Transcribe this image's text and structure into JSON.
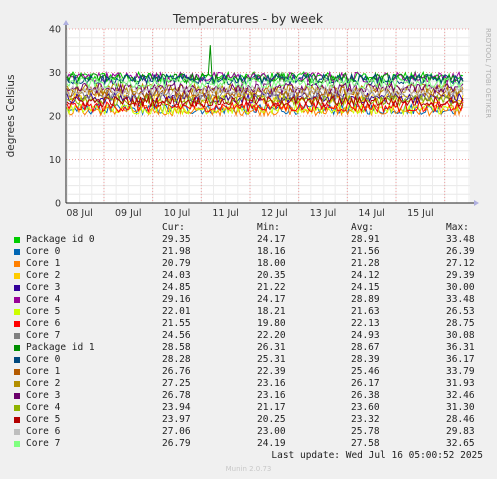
{
  "chart_data": {
    "type": "line",
    "title": "Temperatures - by week",
    "ylabel": "degrees Celsius",
    "side_label": "RRDTOOL / TOBI OETIKER",
    "ylim": [
      0,
      40
    ],
    "yticks": [
      0,
      10,
      20,
      30,
      40
    ],
    "xticks": [
      "08 Jul",
      "09 Jul",
      "10 Jul",
      "11 Jul",
      "12 Jul",
      "13 Jul",
      "14 Jul",
      "15 Jul"
    ],
    "grid": true,
    "legend_placement": "bottom",
    "columns": [
      "Cur:",
      "Min:",
      "Avg:",
      "Max:"
    ],
    "series": [
      {
        "name": "Package id 0",
        "color": "#00cc00",
        "cur": "29.35",
        "min": "24.17",
        "avg": "28.91",
        "max": "33.48"
      },
      {
        "name": "Core 0",
        "color": "#0066b3",
        "cur": "21.98",
        "min": "18.16",
        "avg": "21.56",
        "max": "26.39"
      },
      {
        "name": "Core 1",
        "color": "#ff8000",
        "cur": "20.79",
        "min": "18.00",
        "avg": "21.28",
        "max": "27.12"
      },
      {
        "name": "Core 2",
        "color": "#ffcc00",
        "cur": "24.03",
        "min": "20.35",
        "avg": "24.12",
        "max": "29.39"
      },
      {
        "name": "Core 3",
        "color": "#330099",
        "cur": "24.85",
        "min": "21.22",
        "avg": "24.15",
        "max": "30.00"
      },
      {
        "name": "Core 4",
        "color": "#990099",
        "cur": "29.16",
        "min": "24.17",
        "avg": "28.89",
        "max": "33.48"
      },
      {
        "name": "Core 5",
        "color": "#ccff00",
        "cur": "22.01",
        "min": "18.21",
        "avg": "21.63",
        "max": "26.53"
      },
      {
        "name": "Core 6",
        "color": "#ff0000",
        "cur": "21.55",
        "min": "19.80",
        "avg": "22.13",
        "max": "28.75"
      },
      {
        "name": "Core 7",
        "color": "#808080",
        "cur": "24.56",
        "min": "22.20",
        "avg": "24.93",
        "max": "30.08"
      },
      {
        "name": "Package id 1",
        "color": "#008f00",
        "cur": "28.58",
        "min": "26.31",
        "avg": "28.67",
        "max": "36.31"
      },
      {
        "name": "Core 0",
        "color": "#00487d",
        "cur": "28.28",
        "min": "25.31",
        "avg": "28.39",
        "max": "36.17"
      },
      {
        "name": "Core 1",
        "color": "#b35a00",
        "cur": "26.76",
        "min": "22.39",
        "avg": "25.46",
        "max": "33.79"
      },
      {
        "name": "Core 2",
        "color": "#b38f00",
        "cur": "27.25",
        "min": "23.16",
        "avg": "26.17",
        "max": "31.93"
      },
      {
        "name": "Core 3",
        "color": "#6b006b",
        "cur": "26.78",
        "min": "23.16",
        "avg": "26.38",
        "max": "32.46"
      },
      {
        "name": "Core 4",
        "color": "#8fb300",
        "cur": "23.94",
        "min": "21.17",
        "avg": "23.60",
        "max": "31.30"
      },
      {
        "name": "Core 5",
        "color": "#b30000",
        "cur": "23.97",
        "min": "20.25",
        "avg": "23.32",
        "max": "28.46"
      },
      {
        "name": "Core 6",
        "color": "#bebebe",
        "cur": "27.06",
        "min": "23.00",
        "avg": "25.78",
        "max": "29.83"
      },
      {
        "name": "Core 7",
        "color": "#80ff80",
        "cur": "26.79",
        "min": "24.19",
        "avg": "27.58",
        "max": "32.65"
      }
    ]
  },
  "last_update": "Last update: Wed Jul 16 05:00:52 2025",
  "footer": "Munin 2.0.73"
}
